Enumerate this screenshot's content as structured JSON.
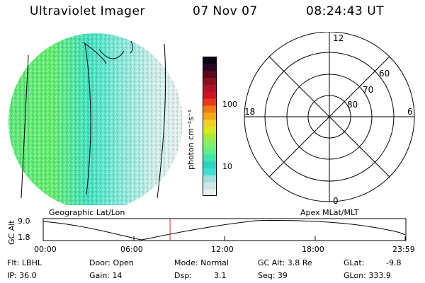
{
  "header": {
    "title": "Ultraviolet Imager",
    "date": "07 Nov 07",
    "time": "08:24:43 UT"
  },
  "colorbar": {
    "unit_label": "photon cm⁻²s⁻¹",
    "ticks": [
      "100",
      "10"
    ],
    "colors": [
      "#e8f0ee",
      "#cfe6e6",
      "#9fe0dc",
      "#3fe0d4",
      "#2ad6c2",
      "#3ee6a8",
      "#5ef08a",
      "#7ff06a",
      "#a8e83c",
      "#d6e824",
      "#f2d21a",
      "#f5a615",
      "#f27a12",
      "#e83a18",
      "#d11224",
      "#b5102a",
      "#8a1020",
      "#5a0a18",
      "#2a0822",
      "#0c0018"
    ]
  },
  "polar": {
    "top": "12",
    "bottom": "0",
    "left": "18",
    "right": "6",
    "rings": [
      "60",
      "70",
      "80"
    ]
  },
  "altitude_plot": {
    "geo_label": "Geographic Lat/Lon",
    "apex_label": "Apex  MLat/MLT",
    "ylabel": "GC Alt",
    "ymax": "9.0",
    "ymin": "1.8",
    "xticks": [
      "00:00",
      "06:00",
      "12:00",
      "18:00",
      "23:59"
    ],
    "current_time_hours": 8.41
  },
  "status": {
    "flt": "Flt: LBHL",
    "ip": "IP: 36.0",
    "door": "Door: Open",
    "gain": "Gain: 14",
    "mode": "Mode:  Normal",
    "dsp_label": "Dsp:",
    "dsp_value": "3.1",
    "gcalt": "GC Alt: 3.8 Re",
    "seq": "Seq: 39",
    "glat_label": "GLat:",
    "glat_value": "-9.8",
    "glon": "GLon: 333.9"
  },
  "colors": {
    "timeline_marker": "#d9302a"
  }
}
